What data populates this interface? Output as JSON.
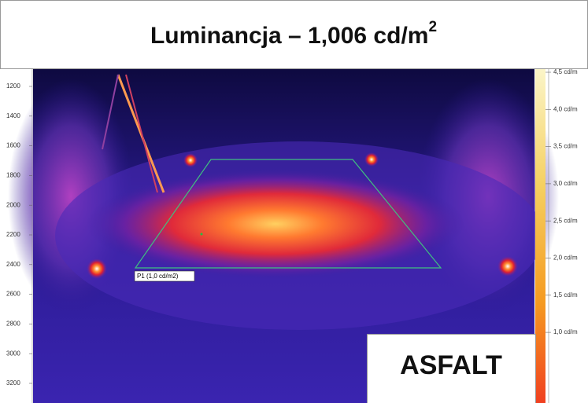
{
  "title": {
    "text": "Luminancja – 1,006 cd/m",
    "superscript": "2"
  },
  "ruler": {
    "labels": [
      1200,
      1400,
      1600,
      1800,
      2000,
      2200,
      2400,
      2600,
      2800,
      3000,
      3200
    ]
  },
  "scale": {
    "labels": [
      "4,5 cd/m",
      "4,0 cd/m",
      "3,5 cd/m",
      "3,0 cd/m",
      "2,5 cd/m",
      "2,0 cd/m",
      "1,5 cd/m",
      "1,0 cd/m"
    ]
  },
  "measurement": {
    "label": "P1 (1,0 cd/m2)"
  },
  "surface": {
    "label": "ASFALT"
  }
}
